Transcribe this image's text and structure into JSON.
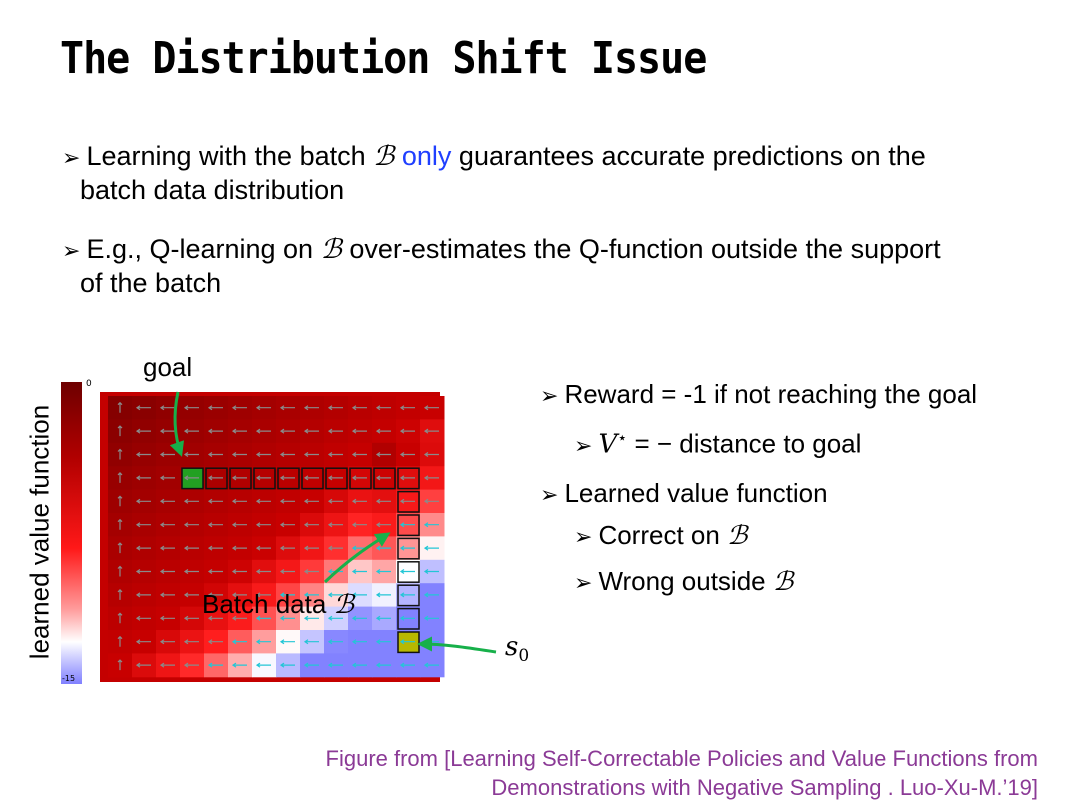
{
  "title": "The Distribution Shift Issue",
  "bullets": [
    {
      "pre": "Learning with the batch ",
      "sym": "ℬ",
      "highlight": "only",
      "post": " guarantees accurate predictions on the",
      "line2": "batch data distribution"
    },
    {
      "pre": "E.g., Q-learning on ",
      "sym": "ℬ",
      "post": " over-estimates the Q-function outside the support",
      "line2": "of the batch"
    }
  ],
  "right_bullets": {
    "reward": "Reward = -1 if not reaching the goal",
    "vstar_lhs": "V",
    "vstar_sup": "⋆",
    "vstar_eq": " = − ",
    "vstar_rhs": "distance to goal",
    "learned": "Learned value function",
    "correct": "Correct on ",
    "wrong": "Wrong outside ",
    "sym": "ℬ"
  },
  "figure": {
    "goal_label": "goal",
    "batch_label": "Batch data ",
    "batch_sym": "ℬ",
    "s0_label": "s",
    "s0_sub": "0",
    "colorbar_label": "learned value function",
    "colorbar_max": "0",
    "colorbar_min": "-15"
  },
  "caption": {
    "line1": "Figure from [Learning Self-Correctable Policies and Value Functions from",
    "line2": "Demonstrations with Negative Sampling . Luo-Xu-M.’19]"
  },
  "colors": {
    "highlight": "#1f3fff",
    "caption": "#8b3a96",
    "annotation_arrow": "#17b04a",
    "goal_cell": "#22a022",
    "start_cell": "#b8b800"
  }
}
